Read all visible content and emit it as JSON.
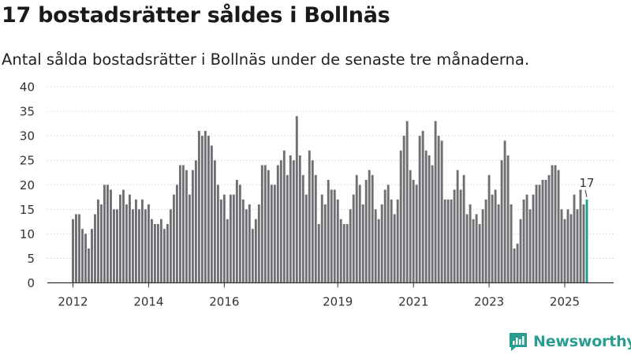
{
  "title": "17 bostadsrätter såldes i Bollnäs",
  "subtitle": "Antal sålda bostadsrätter i Bollnäs under de senaste tre månaderna.",
  "brand": "Newsworthy",
  "colors": {
    "bar": "#6e6e73",
    "highlight": "#1f9d93",
    "brand": "#2a9d8f"
  },
  "chart_data": {
    "type": "bar",
    "title": "17 bostadsrätter såldes i Bollnäs",
    "xlabel": "",
    "ylabel": "",
    "ylim": [
      0,
      40
    ],
    "yticks": [
      0,
      5,
      10,
      15,
      20,
      25,
      30,
      35,
      40
    ],
    "start": "2012-01",
    "frequency": "monthly",
    "xtick_labels": [
      "2012",
      "2014",
      "2016",
      "2019",
      "2021",
      "2023",
      "2025"
    ],
    "xtick_indices": [
      0,
      24,
      48,
      84,
      108,
      132,
      156
    ],
    "highlight_label": "17",
    "values": [
      13,
      14,
      14,
      11,
      10,
      7,
      11,
      14,
      17,
      16,
      20,
      20,
      19,
      15,
      15,
      18,
      19,
      16,
      18,
      15,
      17,
      15,
      17,
      15,
      16,
      13,
      12,
      12,
      13,
      11,
      12,
      15,
      18,
      20,
      24,
      24,
      23,
      18,
      23,
      25,
      31,
      30,
      31,
      30,
      28,
      25,
      20,
      17,
      18,
      13,
      18,
      18,
      21,
      20,
      17,
      15,
      16,
      11,
      13,
      16,
      24,
      24,
      23,
      20,
      20,
      24,
      25,
      27,
      22,
      26,
      25,
      34,
      26,
      22,
      18,
      27,
      25,
      22,
      12,
      18,
      16,
      21,
      19,
      19,
      17,
      13,
      12,
      12,
      15,
      18,
      22,
      20,
      16,
      21,
      23,
      22,
      15,
      13,
      16,
      19,
      20,
      17,
      14,
      17,
      27,
      30,
      33,
      23,
      21,
      20,
      30,
      31,
      27,
      26,
      24,
      33,
      30,
      29,
      17,
      17,
      17,
      19,
      23,
      19,
      22,
      14,
      16,
      13,
      14,
      12,
      15,
      17,
      22,
      18,
      19,
      16,
      25,
      29,
      26,
      16,
      7,
      8,
      13,
      17,
      18,
      15,
      18,
      20,
      20,
      21,
      21,
      22,
      24,
      24,
      23,
      15,
      13,
      15,
      14,
      18,
      15,
      19,
      16,
      17
    ]
  }
}
